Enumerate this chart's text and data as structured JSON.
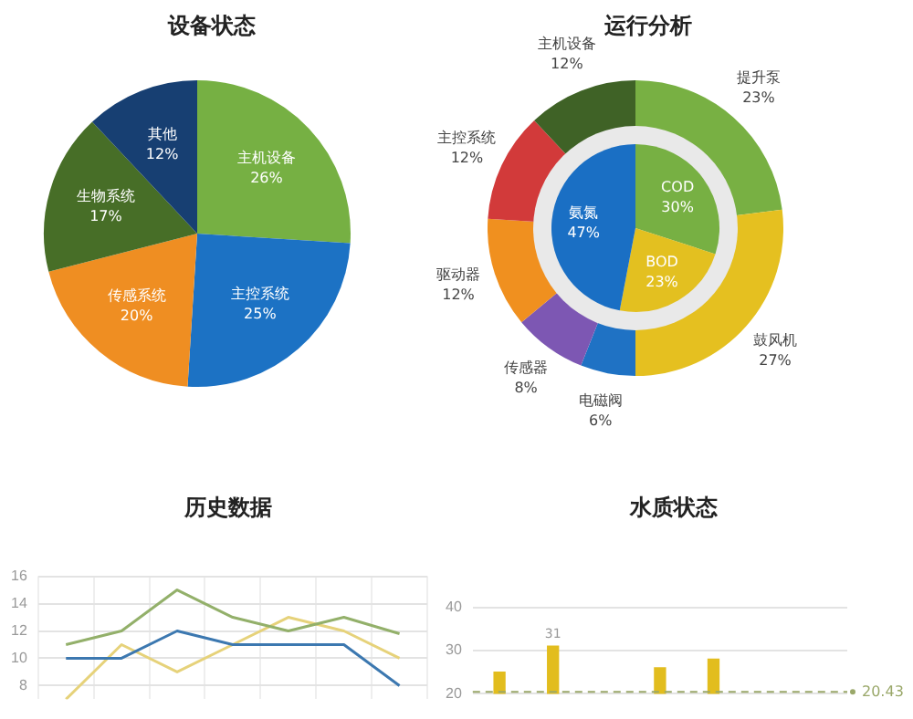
{
  "chart_data": [
    {
      "type": "pie",
      "title": "设备状态",
      "categories": [
        "主机设备",
        "主控系统",
        "传感系统",
        "生物系统",
        "其他"
      ],
      "values": [
        26,
        25,
        20,
        17,
        12
      ],
      "colors": [
        "#76b043",
        "#1c72c4",
        "#ef8e22",
        "#476e27",
        "#173f72"
      ],
      "value_labels": [
        "26%",
        "25%",
        "20%",
        "17%",
        "12%"
      ]
    },
    {
      "type": "donut",
      "title": "运行分析",
      "categories": [
        "提升泵",
        "鼓风机",
        "电磁阀",
        "传感器",
        "驱动器",
        "主控系统",
        "主机设备"
      ],
      "values": [
        23,
        27,
        6,
        8,
        12,
        12,
        12
      ],
      "colors": [
        "#78b043",
        "#e5c020",
        "#1f72c4",
        "#7d57b3",
        "#f0901f",
        "#d23a3a",
        "#3f6226"
      ],
      "value_labels": [
        "23%",
        "27%",
        "6%",
        "8%",
        "12%",
        "12%",
        "12%"
      ]
    },
    {
      "type": "pie",
      "categories": [
        "COD",
        "BOD",
        "氨氮"
      ],
      "values": [
        30,
        23,
        47
      ],
      "colors": [
        "#77b043",
        "#e3c020",
        "#1a6fc4"
      ],
      "value_labels": [
        "30%",
        "23%",
        "47%"
      ]
    },
    {
      "type": "line",
      "title": "历史数据",
      "categories": [
        null,
        null,
        null,
        null,
        null,
        null,
        null
      ],
      "series": [
        {
          "color": "#93b06a",
          "values": [
            11,
            12,
            15,
            13,
            12,
            13,
            11.8
          ]
        },
        {
          "color": "#3c78b0",
          "values": [
            10,
            10,
            12,
            11,
            11,
            11,
            8
          ]
        },
        {
          "color": "#e6d27a",
          "values": [
            7,
            11,
            9,
            11,
            13,
            12,
            10
          ]
        }
      ],
      "ylim": [
        7,
        16
      ],
      "yticks": [
        8,
        10,
        12,
        14,
        16
      ],
      "grid": true,
      "tick_labels": "y"
    },
    {
      "type": "bar",
      "title": "水质状态",
      "categories": [
        null,
        null,
        null,
        null,
        null,
        null,
        null
      ],
      "values": [
        25,
        31,
        null,
        26,
        28,
        null,
        null
      ],
      "color": "#e2bd1e",
      "value_labels": [
        null,
        "31",
        null,
        null,
        null,
        null,
        null
      ],
      "ylim": [
        20,
        40
      ],
      "yticks": [
        20,
        30,
        40
      ],
      "grid": "y",
      "tick_labels": "y",
      "ref_lines": [
        {
          "axis": "y",
          "value": 20.43,
          "label": "20.43",
          "color": "#9aa86a",
          "line_style": "dashed"
        }
      ]
    }
  ]
}
